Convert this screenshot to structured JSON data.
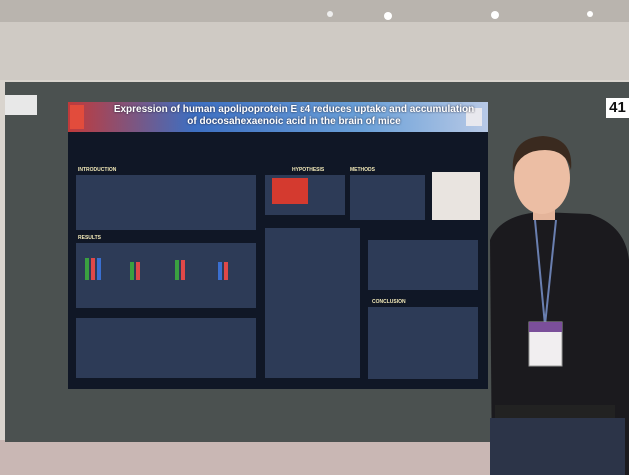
{
  "board_number": "41",
  "poster": {
    "title": "Expression of human apolipoprotein E ε4 reduces uptake and accumulation of docosahexaenoic acid in the brain of mice",
    "sections": [
      "INTRODUCTION",
      "RESULTS",
      "HYPOTHESIS",
      "METHODS",
      "CONCLUSION"
    ]
  }
}
